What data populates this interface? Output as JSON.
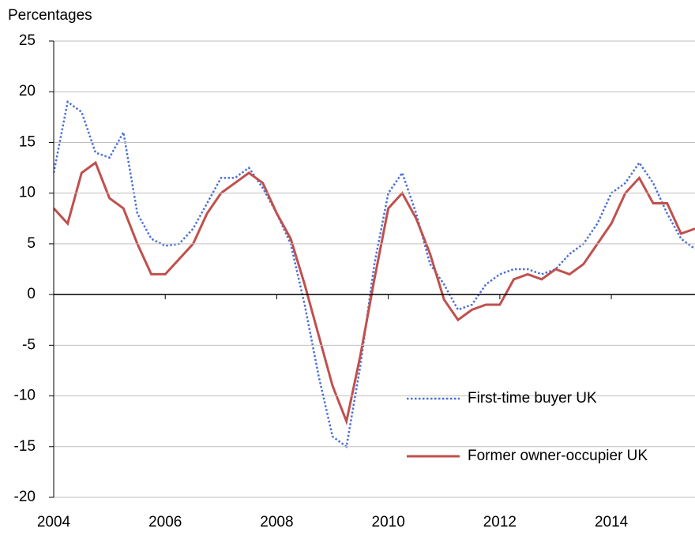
{
  "chart_data": {
    "type": "line",
    "ylabel": "Percentages",
    "x": [
      2004,
      2004.25,
      2004.5,
      2004.75,
      2005,
      2005.25,
      2005.5,
      2005.75,
      2006,
      2006.25,
      2006.5,
      2006.75,
      2007,
      2007.25,
      2007.5,
      2007.75,
      2008,
      2008.25,
      2008.5,
      2008.75,
      2009,
      2009.25,
      2009.5,
      2009.75,
      2010,
      2010.25,
      2010.5,
      2010.75,
      2011,
      2011.25,
      2011.5,
      2011.75,
      2012,
      2012.25,
      2012.5,
      2012.75,
      2013,
      2013.25,
      2013.5,
      2013.75,
      2014,
      2014.25,
      2014.5,
      2014.75,
      2015,
      2015.25,
      2015.5
    ],
    "series": [
      {
        "name": "First-time buyer UK",
        "color": "#4a6fd8",
        "dash": "dotted",
        "values": [
          12,
          19,
          18,
          14,
          13.5,
          16,
          8,
          5.5,
          4.8,
          5,
          6.5,
          9,
          11.5,
          11.5,
          12.5,
          10.5,
          8,
          5,
          -1,
          -8,
          -14,
          -15,
          -7,
          3,
          10,
          12,
          8,
          3,
          1,
          -1.5,
          -1,
          1,
          2,
          2.5,
          2.5,
          2,
          2.5,
          4,
          5,
          7,
          10,
          11,
          13,
          11,
          8,
          5.5,
          4.5
        ]
      },
      {
        "name": "Former owner-occupier UK",
        "color": "#c0504d",
        "dash": "solid",
        "values": [
          8.5,
          7,
          12,
          13,
          9.5,
          8.5,
          5,
          2,
          2,
          3.5,
          5,
          8,
          10,
          11,
          12,
          11,
          8,
          5.5,
          1,
          -4,
          -9,
          -12.5,
          -6,
          1.5,
          8.5,
          10,
          7.5,
          4,
          -0.5,
          -2.5,
          -1.5,
          -1,
          -1,
          1.5,
          2,
          1.5,
          2.5,
          2,
          3,
          5,
          7,
          10,
          11.5,
          9,
          9,
          6,
          6.5
        ]
      }
    ],
    "xlim": [
      2004,
      2015.5
    ],
    "xticks": [
      2004,
      2006,
      2008,
      2010,
      2012,
      2014
    ],
    "ylim": [
      -20,
      25
    ],
    "yticks": [
      -20,
      -15,
      -10,
      -5,
      0,
      5,
      10,
      15,
      20,
      25
    ],
    "grid": true,
    "legend": "lower right"
  }
}
